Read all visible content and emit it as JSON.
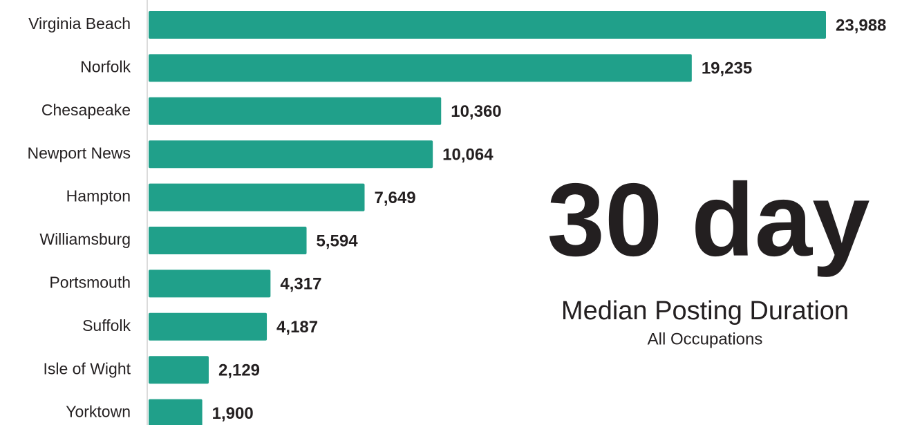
{
  "chart_data": {
    "type": "bar",
    "orientation": "horizontal",
    "categories": [
      "Virginia Beach",
      "Norfolk",
      "Chesapeake",
      "Newport News",
      "Hampton",
      "Williamsburg",
      "Portsmouth",
      "Suffolk",
      "Isle of Wight",
      "Yorktown"
    ],
    "values": [
      23988,
      19235,
      10360,
      10064,
      7649,
      5594,
      4317,
      4187,
      2129,
      1900
    ],
    "value_labels": [
      "23,988",
      "19,235",
      "10,360",
      "10,064",
      "7,649",
      "5,594",
      "4,317",
      "4,187",
      "2,129",
      "1,900"
    ],
    "color": "#20a08a",
    "annotations": [
      "30 day",
      "Median Posting Duration",
      "All Occupations"
    ]
  }
}
